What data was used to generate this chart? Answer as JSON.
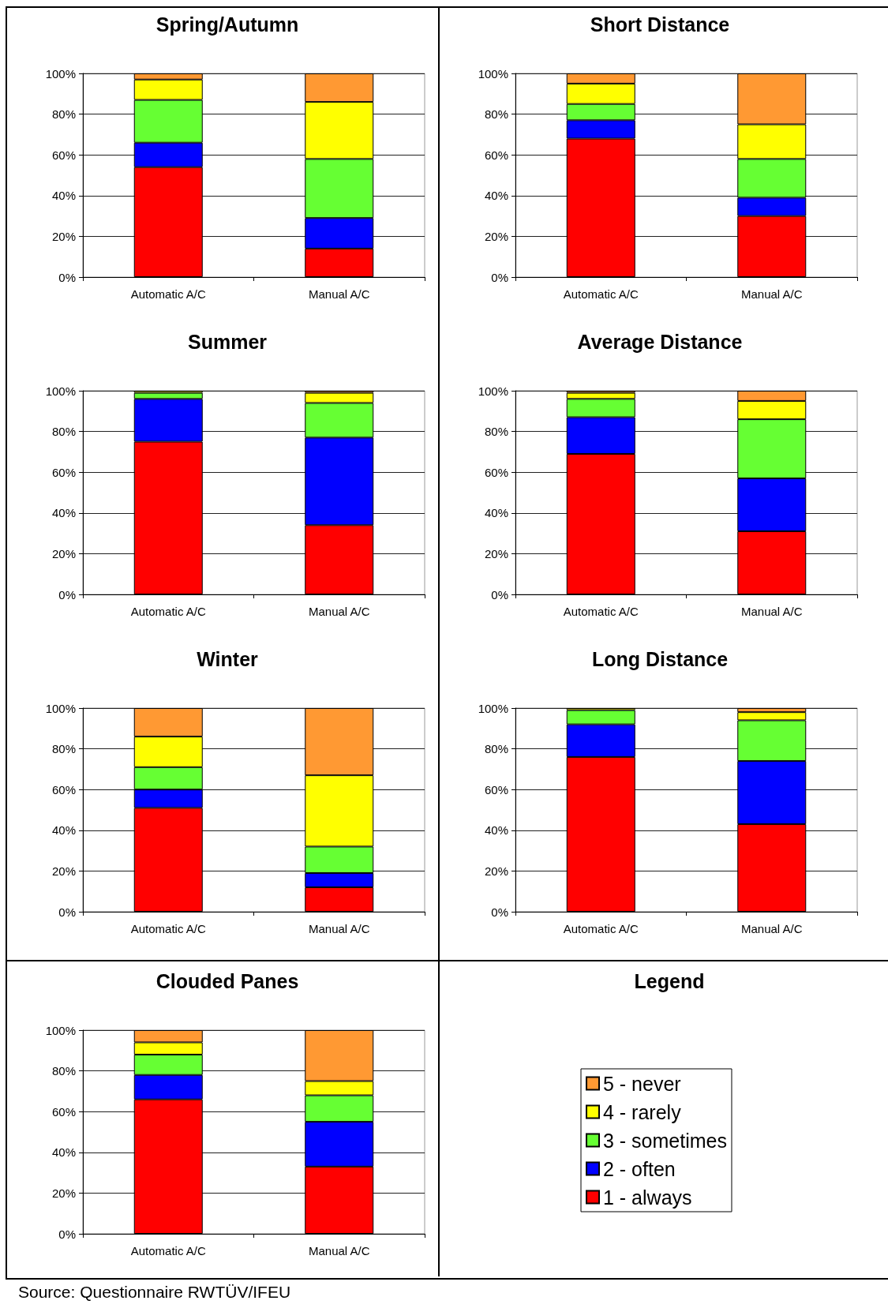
{
  "chart_data": [
    {
      "type": "bar",
      "title": "Spring/Autumn",
      "categories": [
        "Automatic A/C",
        "Manual A/C"
      ],
      "stacked": true,
      "grid": "y",
      "legend": false,
      "ylim": [
        0,
        100
      ],
      "yticks": [
        {
          "value": 0,
          "label": "0%"
        },
        {
          "value": 20,
          "label": "20%"
        },
        {
          "value": 40,
          "label": "40%"
        },
        {
          "value": 60,
          "label": "60%"
        },
        {
          "value": 80,
          "label": "80%"
        },
        {
          "value": 100,
          "label": "100%"
        }
      ],
      "series": [
        {
          "color": "#ff0000",
          "values": [
            54,
            14
          ]
        },
        {
          "color": "#0000ff",
          "values": [
            12,
            15
          ]
        },
        {
          "color": "#66ff33",
          "values": [
            21,
            29
          ]
        },
        {
          "color": "#ffff00",
          "values": [
            10,
            28
          ]
        },
        {
          "color": "#ff9933",
          "values": [
            3,
            14
          ]
        }
      ]
    },
    {
      "type": "bar",
      "title": "Short Distance",
      "categories": [
        "Automatic A/C",
        "Manual A/C"
      ],
      "stacked": true,
      "grid": "y",
      "legend": false,
      "ylim": [
        0,
        100
      ],
      "yticks": [
        {
          "value": 0,
          "label": "0%"
        },
        {
          "value": 20,
          "label": "20%"
        },
        {
          "value": 40,
          "label": "40%"
        },
        {
          "value": 60,
          "label": "60%"
        },
        {
          "value": 80,
          "label": "80%"
        },
        {
          "value": 100,
          "label": "100%"
        }
      ],
      "series": [
        {
          "color": "#ff0000",
          "values": [
            68,
            30
          ]
        },
        {
          "color": "#0000ff",
          "values": [
            9,
            9
          ]
        },
        {
          "color": "#66ff33",
          "values": [
            8,
            19
          ]
        },
        {
          "color": "#ffff00",
          "values": [
            10,
            17
          ]
        },
        {
          "color": "#ff9933",
          "values": [
            5,
            25
          ]
        }
      ]
    },
    {
      "type": "bar",
      "title": "Summer",
      "categories": [
        "Automatic A/C",
        "Manual A/C"
      ],
      "stacked": true,
      "grid": "y",
      "legend": false,
      "ylim": [
        0,
        100
      ],
      "yticks": [
        {
          "value": 0,
          "label": "0%"
        },
        {
          "value": 20,
          "label": "20%"
        },
        {
          "value": 40,
          "label": "40%"
        },
        {
          "value": 60,
          "label": "60%"
        },
        {
          "value": 80,
          "label": "80%"
        },
        {
          "value": 100,
          "label": "100%"
        }
      ],
      "series": [
        {
          "color": "#ff0000",
          "values": [
            75,
            34
          ]
        },
        {
          "color": "#0000ff",
          "values": [
            21,
            43
          ]
        },
        {
          "color": "#66ff33",
          "values": [
            3,
            17
          ]
        },
        {
          "color": "#ffff00",
          "values": [
            1,
            5
          ]
        },
        {
          "color": "#ff9933",
          "values": [
            null,
            1
          ]
        }
      ]
    },
    {
      "type": "bar",
      "title": "Average Distance",
      "categories": [
        "Automatic A/C",
        "Manual A/C"
      ],
      "stacked": true,
      "grid": "y",
      "legend": false,
      "ylim": [
        0,
        100
      ],
      "yticks": [
        {
          "value": 0,
          "label": "0%"
        },
        {
          "value": 20,
          "label": "20%"
        },
        {
          "value": 40,
          "label": "40%"
        },
        {
          "value": 60,
          "label": "60%"
        },
        {
          "value": 80,
          "label": "80%"
        },
        {
          "value": 100,
          "label": "100%"
        }
      ],
      "series": [
        {
          "color": "#ff0000",
          "values": [
            69,
            31
          ]
        },
        {
          "color": "#0000ff",
          "values": [
            18,
            26
          ]
        },
        {
          "color": "#66ff33",
          "values": [
            9,
            29
          ]
        },
        {
          "color": "#ffff00",
          "values": [
            3,
            9
          ]
        },
        {
          "color": "#ff9933",
          "values": [
            1,
            5
          ]
        }
      ]
    },
    {
      "type": "bar",
      "title": "Winter",
      "categories": [
        "Automatic A/C",
        "Manual A/C"
      ],
      "stacked": true,
      "grid": "y",
      "legend": false,
      "ylim": [
        0,
        100
      ],
      "yticks": [
        {
          "value": 0,
          "label": "0%"
        },
        {
          "value": 20,
          "label": "20%"
        },
        {
          "value": 40,
          "label": "40%"
        },
        {
          "value": 60,
          "label": "60%"
        },
        {
          "value": 80,
          "label": "80%"
        },
        {
          "value": 100,
          "label": "100%"
        }
      ],
      "series": [
        {
          "color": "#ff0000",
          "values": [
            51,
            12
          ]
        },
        {
          "color": "#0000ff",
          "values": [
            9,
            7
          ]
        },
        {
          "color": "#66ff33",
          "values": [
            11,
            13
          ]
        },
        {
          "color": "#ffff00",
          "values": [
            15,
            35
          ]
        },
        {
          "color": "#ff9933",
          "values": [
            14,
            33
          ]
        }
      ]
    },
    {
      "type": "bar",
      "title": "Long Distance",
      "categories": [
        "Automatic A/C",
        "Manual A/C"
      ],
      "stacked": true,
      "grid": "y",
      "legend": false,
      "ylim": [
        0,
        100
      ],
      "yticks": [
        {
          "value": 0,
          "label": "0%"
        },
        {
          "value": 20,
          "label": "20%"
        },
        {
          "value": 40,
          "label": "40%"
        },
        {
          "value": 60,
          "label": "60%"
        },
        {
          "value": 80,
          "label": "80%"
        },
        {
          "value": 100,
          "label": "100%"
        }
      ],
      "series": [
        {
          "color": "#ff0000",
          "values": [
            76,
            43
          ]
        },
        {
          "color": "#0000ff",
          "values": [
            16,
            31
          ]
        },
        {
          "color": "#66ff33",
          "values": [
            7,
            20
          ]
        },
        {
          "color": "#ffff00",
          "values": [
            1,
            4
          ]
        },
        {
          "color": "#ff9933",
          "values": [
            null,
            2
          ]
        }
      ]
    },
    {
      "type": "bar",
      "title": "Clouded Panes",
      "categories": [
        "Automatic A/C",
        "Manual A/C"
      ],
      "stacked": true,
      "grid": "y",
      "legend": "right",
      "legend_title": "Legend",
      "ylim": [
        0,
        100
      ],
      "yticks": [
        {
          "value": 0,
          "label": "0%"
        },
        {
          "value": 20,
          "label": "20%"
        },
        {
          "value": 40,
          "label": "40%"
        },
        {
          "value": 60,
          "label": "60%"
        },
        {
          "value": 80,
          "label": "80%"
        },
        {
          "value": 100,
          "label": "100%"
        }
      ],
      "annotations": [
        "Source: Questionnaire RWTÜV/IFEU"
      ],
      "series": [
        {
          "name": "1 - always",
          "color": "#ff0000",
          "values": [
            66,
            33
          ]
        },
        {
          "name": "2 - often",
          "color": "#0000ff",
          "values": [
            12,
            22
          ]
        },
        {
          "name": "3 - sometimes",
          "color": "#66ff33",
          "values": [
            10,
            13
          ]
        },
        {
          "name": "4 - rarely",
          "color": "#ffff00",
          "values": [
            6,
            7
          ]
        },
        {
          "name": "5 - never",
          "color": "#ff9933",
          "values": [
            6,
            25
          ]
        }
      ]
    }
  ]
}
